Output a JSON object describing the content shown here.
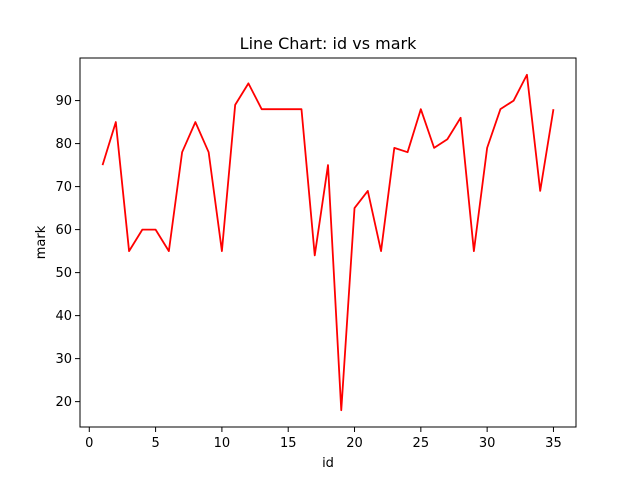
{
  "chart_data": {
    "type": "line",
    "title": "Line Chart: id vs mark",
    "xlabel": "id",
    "ylabel": "mark",
    "x": [
      1,
      2,
      3,
      4,
      5,
      6,
      7,
      8,
      9,
      10,
      11,
      12,
      13,
      14,
      15,
      16,
      17,
      18,
      19,
      20,
      21,
      22,
      23,
      24,
      25,
      26,
      27,
      28,
      29,
      30,
      31,
      32,
      33,
      34,
      35
    ],
    "series": [
      {
        "values": [
          75,
          85,
          55,
          60,
          60,
          55,
          78,
          85,
          78,
          55,
          89,
          94,
          88,
          88,
          88,
          88,
          54,
          75,
          18,
          65,
          69,
          55,
          79,
          78,
          88,
          79,
          81,
          86,
          55,
          79,
          88,
          90,
          96,
          69,
          88
        ],
        "color": "#ff0000"
      }
    ],
    "xlim": [
      -0.7,
      36.7
    ],
    "ylim": [
      14.1,
      99.9
    ],
    "xticks": [
      0,
      5,
      10,
      15,
      20,
      25,
      30,
      35
    ],
    "yticks": [
      20,
      30,
      40,
      50,
      60,
      70,
      80,
      90
    ],
    "grid": false,
    "legend": "none"
  }
}
